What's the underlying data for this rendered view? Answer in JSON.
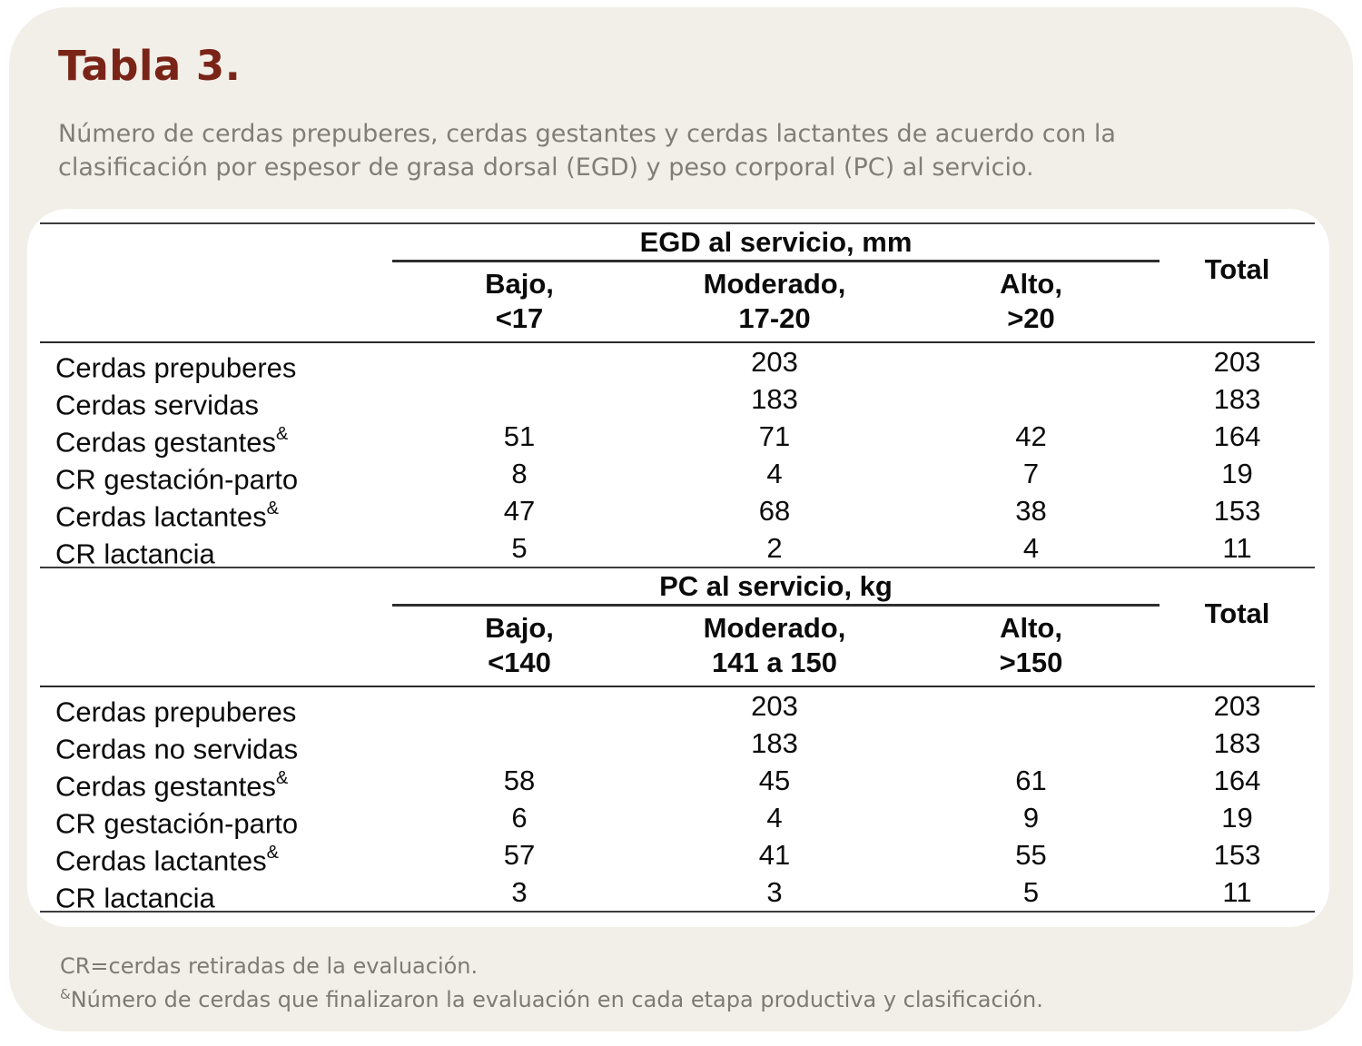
{
  "page": {
    "title": "Tabla 3.",
    "subtitle": "Número de cerdas prepuberes, cerdas gestantes y cerdas lactantes de acuerdo con la clasificación por espesor de grasa dorsal (EGD) y peso corporal (PC) al servicio."
  },
  "colors": {
    "page_background": "#f1efe8",
    "card_background": "#ffffff",
    "title_text": "#7a2418",
    "caption_text": "#7f7e77",
    "table_text": "#0b0b0b",
    "rule_line": "#3c3c3c"
  },
  "tables": [
    {
      "group_header": "EGD al servicio, mm",
      "total_label": "Total",
      "cols": [
        {
          "line1": "Bajo,",
          "line2": "<17"
        },
        {
          "line1": "Moderado,",
          "line2": "17-20"
        },
        {
          "line1": "Alto,",
          "line2": ">20"
        }
      ],
      "rows": [
        {
          "label": "Cerdas prepuberes",
          "sup": "",
          "v": [
            "",
            "203",
            "",
            "203"
          ]
        },
        {
          "label": "Cerdas servidas",
          "sup": "",
          "v": [
            "",
            "183",
            "",
            "183"
          ]
        },
        {
          "label": "Cerdas gestantes",
          "sup": "&",
          "v": [
            "51",
            "71",
            "42",
            "164"
          ]
        },
        {
          "label": "CR gestación-parto",
          "sup": "",
          "v": [
            "8",
            "4",
            "7",
            "19"
          ]
        },
        {
          "label": "Cerdas lactantes",
          "sup": "&",
          "v": [
            "47",
            "68",
            "38",
            "153"
          ]
        },
        {
          "label": "CR lactancia",
          "sup": "",
          "v": [
            "5",
            "2",
            "4",
            "11"
          ]
        }
      ]
    },
    {
      "group_header": "PC al servicio, kg",
      "total_label": "Total",
      "cols": [
        {
          "line1": "Bajo,",
          "line2": "<140"
        },
        {
          "line1": "Moderado,",
          "line2": "141 a 150"
        },
        {
          "line1": "Alto,",
          "line2": ">150"
        }
      ],
      "rows": [
        {
          "label": "Cerdas prepuberes",
          "sup": "",
          "v": [
            "",
            "203",
            "",
            "203"
          ]
        },
        {
          "label": "Cerdas no servidas",
          "sup": "",
          "v": [
            "",
            "183",
            "",
            "183"
          ]
        },
        {
          "label": "Cerdas gestantes",
          "sup": "&",
          "v": [
            "58",
            "45",
            "61",
            "164"
          ]
        },
        {
          "label": "CR gestación-parto",
          "sup": "",
          "v": [
            "6",
            "4",
            "9",
            "19"
          ]
        },
        {
          "label": "Cerdas lactantes",
          "sup": "&",
          "v": [
            "57",
            "41",
            "55",
            "153"
          ]
        },
        {
          "label": "CR lactancia",
          "sup": "",
          "v": [
            "3",
            "3",
            "5",
            "11"
          ]
        }
      ]
    }
  ],
  "footnotes": [
    {
      "sup": "",
      "text": "CR=cerdas retiradas de la evaluación."
    },
    {
      "sup": "&",
      "text": "Número de cerdas que finalizaron la evaluación en cada etapa productiva y clasificación."
    }
  ]
}
